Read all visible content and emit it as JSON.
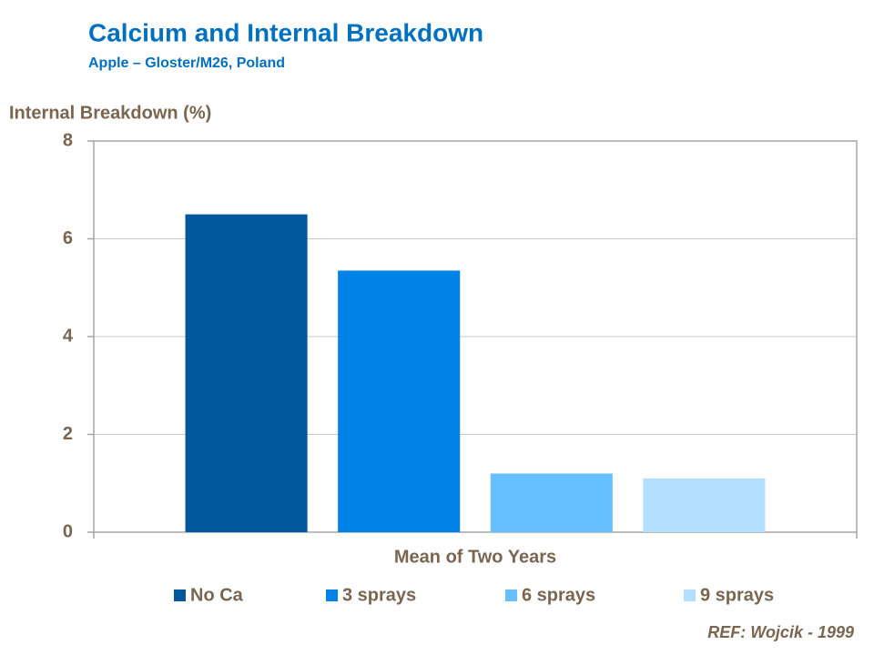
{
  "chart_data": {
    "type": "bar",
    "title": "Calcium and Internal Breakdown",
    "subtitle": "Apple – Gloster/M26, Poland",
    "y_label": "Internal Breakdown (%)",
    "annotation": "REF: Wojcik - 1999",
    "categories": [
      "Mean of Two Years"
    ],
    "series": [
      {
        "name": "No Ca",
        "color": "#00579b",
        "values": [
          6.5
        ]
      },
      {
        "name": "3 sprays",
        "color": "#0082e6",
        "values": [
          5.35
        ]
      },
      {
        "name": "6 sprays",
        "color": "#66bfff",
        "values": [
          1.2
        ]
      },
      {
        "name": "9 sprays",
        "color": "#b3deff",
        "values": [
          1.1
        ]
      }
    ],
    "ylim": [
      0,
      8
    ],
    "yticks": [
      0,
      2,
      4,
      6,
      8
    ],
    "grid": true,
    "legend": "bottom"
  }
}
